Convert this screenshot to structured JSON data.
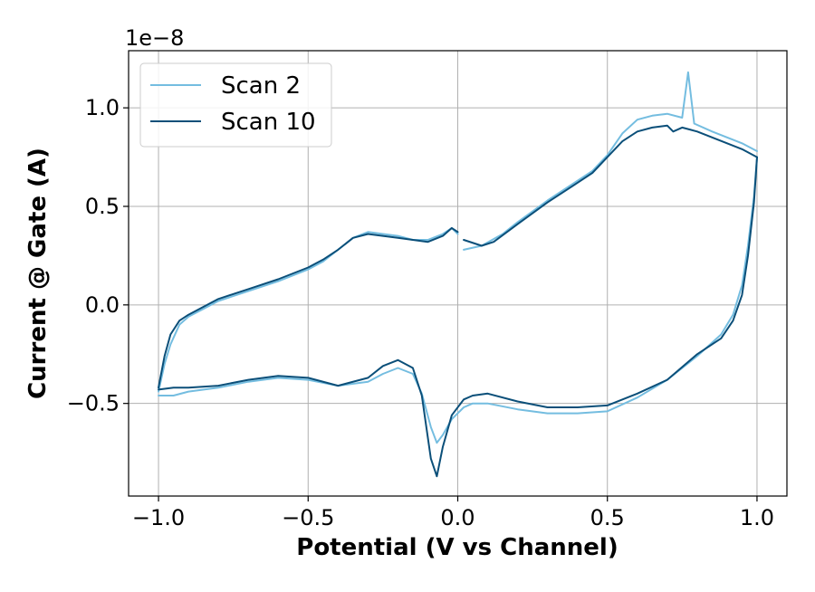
{
  "chart_data": {
    "type": "line",
    "title": "",
    "xlabel": "Potential (V vs Channel)",
    "ylabel": "Current @ Gate (A)",
    "y_offset_label": "1e−8",
    "xlim": [
      -1.1,
      1.1
    ],
    "ylim": [
      -0.97,
      1.29
    ],
    "x_ticks": [
      -1.0,
      -0.5,
      0.0,
      0.5,
      1.0
    ],
    "x_tick_labels": [
      "−1.0",
      "−0.5",
      "0.0",
      "0.5",
      "1.0"
    ],
    "y_ticks": [
      -0.5,
      0.0,
      0.5,
      1.0
    ],
    "y_tick_labels": [
      "−0.5",
      "0.0",
      "0.5",
      "1.0"
    ],
    "grid": true,
    "legend_position": "top-left",
    "legend": [
      {
        "label": "Scan 2",
        "color": "#74bde0"
      },
      {
        "label": "Scan 10",
        "color": "#0b4f79"
      }
    ],
    "series": [
      {
        "name": "Scan 2",
        "color": "#74bde0",
        "forward": [
          [
            0.02,
            0.28
          ],
          [
            0.08,
            0.3
          ],
          [
            0.15,
            0.36
          ],
          [
            0.2,
            0.42
          ],
          [
            0.3,
            0.53
          ],
          [
            0.4,
            0.63
          ],
          [
            0.45,
            0.68
          ],
          [
            0.5,
            0.76
          ],
          [
            0.55,
            0.87
          ],
          [
            0.6,
            0.94
          ],
          [
            0.65,
            0.96
          ],
          [
            0.7,
            0.97
          ],
          [
            0.75,
            0.95
          ],
          [
            0.77,
            1.18
          ],
          [
            0.79,
            0.92
          ],
          [
            0.85,
            0.88
          ],
          [
            0.9,
            0.85
          ],
          [
            0.95,
            0.82
          ],
          [
            1.0,
            0.78
          ]
        ],
        "reverse": [
          [
            1.0,
            0.75
          ],
          [
            0.99,
            0.55
          ],
          [
            0.97,
            0.3
          ],
          [
            0.95,
            0.1
          ],
          [
            0.92,
            -0.05
          ],
          [
            0.88,
            -0.15
          ],
          [
            0.8,
            -0.26
          ],
          [
            0.7,
            -0.38
          ],
          [
            0.6,
            -0.47
          ],
          [
            0.5,
            -0.54
          ],
          [
            0.4,
            -0.55
          ],
          [
            0.3,
            -0.55
          ],
          [
            0.2,
            -0.53
          ],
          [
            0.1,
            -0.5
          ],
          [
            0.05,
            -0.5
          ],
          [
            0.02,
            -0.52
          ],
          [
            -0.02,
            -0.58
          ],
          [
            -0.05,
            -0.66
          ],
          [
            -0.07,
            -0.7
          ],
          [
            -0.09,
            -0.62
          ],
          [
            -0.12,
            -0.45
          ],
          [
            -0.15,
            -0.35
          ],
          [
            -0.2,
            -0.32
          ],
          [
            -0.25,
            -0.35
          ],
          [
            -0.3,
            -0.39
          ],
          [
            -0.4,
            -0.41
          ],
          [
            -0.5,
            -0.38
          ],
          [
            -0.6,
            -0.37
          ],
          [
            -0.7,
            -0.39
          ],
          [
            -0.8,
            -0.42
          ],
          [
            -0.9,
            -0.44
          ],
          [
            -0.95,
            -0.46
          ],
          [
            -1.0,
            -0.46
          ]
        ],
        "tail": [
          [
            -1.0,
            -0.44
          ],
          [
            -0.98,
            -0.3
          ],
          [
            -0.96,
            -0.2
          ],
          [
            -0.93,
            -0.1
          ],
          [
            -0.9,
            -0.06
          ],
          [
            -0.85,
            -0.02
          ],
          [
            -0.8,
            0.02
          ],
          [
            -0.7,
            0.07
          ],
          [
            -0.6,
            0.12
          ],
          [
            -0.5,
            0.18
          ],
          [
            -0.45,
            0.22
          ],
          [
            -0.4,
            0.28
          ],
          [
            -0.35,
            0.34
          ],
          [
            -0.3,
            0.37
          ],
          [
            -0.25,
            0.36
          ],
          [
            -0.2,
            0.35
          ],
          [
            -0.15,
            0.33
          ],
          [
            -0.1,
            0.33
          ],
          [
            -0.05,
            0.36
          ],
          [
            -0.02,
            0.39
          ],
          [
            0.0,
            0.36
          ]
        ]
      },
      {
        "name": "Scan 10",
        "color": "#0b4f79",
        "forward": [
          [
            0.02,
            0.33
          ],
          [
            0.08,
            0.3
          ],
          [
            0.12,
            0.32
          ],
          [
            0.2,
            0.41
          ],
          [
            0.3,
            0.52
          ],
          [
            0.4,
            0.62
          ],
          [
            0.45,
            0.67
          ],
          [
            0.5,
            0.75
          ],
          [
            0.55,
            0.83
          ],
          [
            0.6,
            0.88
          ],
          [
            0.65,
            0.9
          ],
          [
            0.7,
            0.91
          ],
          [
            0.72,
            0.88
          ],
          [
            0.75,
            0.9
          ],
          [
            0.8,
            0.88
          ],
          [
            0.85,
            0.85
          ],
          [
            0.9,
            0.82
          ],
          [
            0.95,
            0.79
          ],
          [
            1.0,
            0.75
          ]
        ],
        "reverse": [
          [
            1.0,
            0.75
          ],
          [
            0.99,
            0.52
          ],
          [
            0.97,
            0.25
          ],
          [
            0.95,
            0.05
          ],
          [
            0.92,
            -0.08
          ],
          [
            0.88,
            -0.17
          ],
          [
            0.8,
            -0.25
          ],
          [
            0.7,
            -0.38
          ],
          [
            0.6,
            -0.45
          ],
          [
            0.5,
            -0.51
          ],
          [
            0.4,
            -0.52
          ],
          [
            0.3,
            -0.52
          ],
          [
            0.2,
            -0.49
          ],
          [
            0.1,
            -0.45
          ],
          [
            0.05,
            -0.46
          ],
          [
            0.02,
            -0.48
          ],
          [
            -0.02,
            -0.56
          ],
          [
            -0.05,
            -0.72
          ],
          [
            -0.07,
            -0.87
          ],
          [
            -0.09,
            -0.78
          ],
          [
            -0.12,
            -0.46
          ],
          [
            -0.15,
            -0.32
          ],
          [
            -0.2,
            -0.28
          ],
          [
            -0.25,
            -0.31
          ],
          [
            -0.3,
            -0.37
          ],
          [
            -0.4,
            -0.41
          ],
          [
            -0.5,
            -0.37
          ],
          [
            -0.6,
            -0.36
          ],
          [
            -0.7,
            -0.38
          ],
          [
            -0.8,
            -0.41
          ],
          [
            -0.9,
            -0.42
          ],
          [
            -0.95,
            -0.42
          ],
          [
            -1.0,
            -0.43
          ]
        ],
        "tail": [
          [
            -1.0,
            -0.42
          ],
          [
            -0.98,
            -0.26
          ],
          [
            -0.96,
            -0.15
          ],
          [
            -0.93,
            -0.08
          ],
          [
            -0.9,
            -0.05
          ],
          [
            -0.85,
            -0.01
          ],
          [
            -0.8,
            0.03
          ],
          [
            -0.7,
            0.08
          ],
          [
            -0.6,
            0.13
          ],
          [
            -0.5,
            0.19
          ],
          [
            -0.45,
            0.23
          ],
          [
            -0.4,
            0.28
          ],
          [
            -0.35,
            0.34
          ],
          [
            -0.3,
            0.36
          ],
          [
            -0.25,
            0.35
          ],
          [
            -0.2,
            0.34
          ],
          [
            -0.15,
            0.33
          ],
          [
            -0.1,
            0.32
          ],
          [
            -0.05,
            0.35
          ],
          [
            -0.02,
            0.39
          ],
          [
            0.0,
            0.37
          ]
        ]
      }
    ]
  }
}
